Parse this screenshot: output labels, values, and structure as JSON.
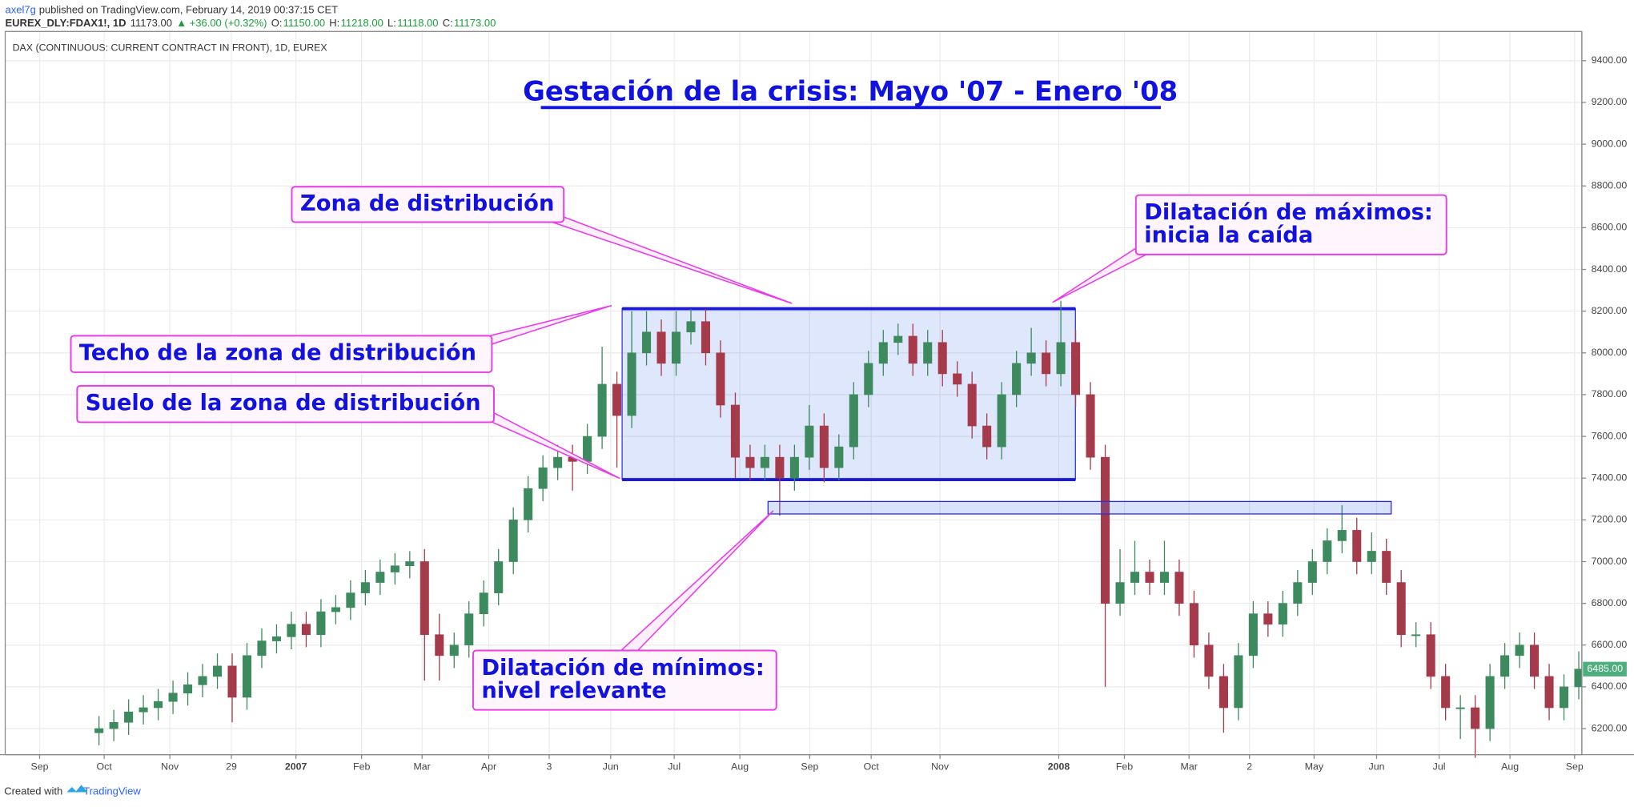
{
  "header": {
    "publisher": "axel7g",
    "published": "published on TradingView.com, February 14, 2019 00:37:15 CET",
    "quote": [
      "EUREX_DLY:FDAX1!, 1D",
      "11173.00",
      "▲ +36.00 (+0.32%)",
      "O:",
      "11150.00",
      "H:",
      "11218.00",
      "L:",
      "11118.00",
      "C:",
      "11173.00"
    ],
    "symbol_description": "DAX (CONTINUOUS: CURRENT CONTRACT IN FRONT), 1D, EUREX"
  },
  "chart_data": {
    "type": "candlestick",
    "title": "Gestación de la crisis: Mayo '07 - Enero '08",
    "categories": [
      "Sep",
      "Oct",
      "Nov",
      "29",
      "2007",
      "Feb",
      "Mar",
      "Apr",
      "3",
      "Jun",
      "Jul",
      "Aug",
      "Sep",
      "Oct",
      "Nov",
      "2008",
      "Feb",
      "Mar",
      "2",
      "May",
      "Jun",
      "Jul",
      "Aug",
      "Sep"
    ],
    "up_color": "#3c8a5e",
    "down_color": "#a53a4b",
    "open": [
      6180,
      6200,
      6230,
      6280,
      6300,
      6330,
      6370,
      6410,
      6450,
      6500,
      6350,
      6550,
      6620,
      6640,
      6700,
      6650,
      6760,
      6780,
      6850,
      6900,
      6950,
      6980,
      7000,
      6650,
      6550,
      6600,
      6750,
      6850,
      7000,
      7200,
      7350,
      7450,
      7500,
      7480,
      7600,
      7850,
      7700,
      8000,
      8100,
      7950,
      8100,
      8150,
      8000,
      7750,
      7500,
      7450,
      7500,
      7400,
      7500,
      7650,
      7450,
      7550,
      7800,
      7950,
      8050,
      8080,
      7950,
      8050,
      7900,
      7850,
      7650,
      7550,
      7800,
      7950,
      8000,
      7900,
      8050,
      7800,
      7500,
      6800,
      6900,
      6950,
      6900,
      6950,
      6800,
      6600,
      6450,
      6300,
      6550,
      6750,
      6700,
      6800,
      6900,
      7000,
      7100,
      7150,
      7000,
      7050,
      6900,
      6650,
      6650,
      6450,
      6300,
      6300,
      6200,
      6450,
      6550,
      6600,
      6450,
      6300,
      6400
    ],
    "high": [
      6260,
      6290,
      6340,
      6360,
      6390,
      6430,
      6470,
      6510,
      6560,
      6560,
      6610,
      6680,
      6700,
      6760,
      6760,
      6820,
      6840,
      6910,
      6960,
      7010,
      7040,
      7050,
      7060,
      6750,
      6660,
      6810,
      6910,
      7060,
      7260,
      7410,
      7510,
      7560,
      7560,
      7660,
      8030,
      7910,
      8200,
      8200,
      8160,
      8200,
      8210,
      8210,
      8060,
      7810,
      7560,
      7560,
      7560,
      7560,
      7750,
      7710,
      7610,
      7860,
      8010,
      8110,
      8140,
      8140,
      8110,
      8110,
      7960,
      7910,
      7710,
      7860,
      8010,
      8120,
      8060,
      8250,
      8110,
      7860,
      7560,
      7060,
      7100,
      7010,
      7100,
      7010,
      6860,
      6660,
      6510,
      6610,
      6810,
      6810,
      6860,
      6960,
      7060,
      7160,
      7270,
      7210,
      7140,
      7110,
      6960,
      6710,
      6710,
      6510,
      6360,
      6360,
      6510,
      6610,
      6660,
      6660,
      6510,
      6460,
      6570
    ],
    "low": [
      6120,
      6140,
      6170,
      6220,
      6240,
      6270,
      6310,
      6350,
      6390,
      6230,
      6290,
      6490,
      6560,
      6580,
      6590,
      6590,
      6700,
      6720,
      6790,
      6840,
      6890,
      6920,
      6430,
      6430,
      6490,
      6540,
      6690,
      6790,
      6940,
      7140,
      7290,
      7390,
      7340,
      7420,
      7540,
      7450,
      7640,
      7940,
      7890,
      7890,
      8040,
      7940,
      7690,
      7400,
      7390,
      7390,
      7220,
      7340,
      7440,
      7380,
      7390,
      7490,
      7740,
      7890,
      7990,
      7890,
      7890,
      7840,
      7790,
      7590,
      7490,
      7490,
      7740,
      7890,
      7840,
      7840,
      7740,
      7440,
      6400,
      6740,
      6840,
      6840,
      6840,
      6740,
      6540,
      6390,
      6180,
      6240,
      6490,
      6640,
      6640,
      6740,
      6840,
      6940,
      7040,
      6940,
      6940,
      6840,
      6590,
      6590,
      6390,
      6240,
      6150,
      6060,
      6140,
      6390,
      6490,
      6390,
      6240,
      6240,
      6340
    ],
    "close": [
      6200,
      6230,
      6280,
      6300,
      6330,
      6370,
      6410,
      6450,
      6500,
      6350,
      6550,
      6620,
      6640,
      6700,
      6650,
      6760,
      6780,
      6850,
      6900,
      6950,
      6980,
      7000,
      6650,
      6550,
      6600,
      6750,
      6850,
      7000,
      7200,
      7350,
      7450,
      7500,
      7480,
      7600,
      7850,
      7700,
      8000,
      8100,
      7950,
      8100,
      8150,
      8000,
      7750,
      7500,
      7450,
      7500,
      7400,
      7500,
      7650,
      7450,
      7550,
      7800,
      7950,
      8050,
      8080,
      7950,
      8050,
      7900,
      7850,
      7650,
      7550,
      7800,
      7950,
      8000,
      7900,
      8050,
      7800,
      7500,
      6800,
      6900,
      6950,
      6900,
      6950,
      6800,
      6600,
      6450,
      6300,
      6550,
      6750,
      6700,
      6800,
      6900,
      7000,
      7100,
      7150,
      7000,
      7050,
      6900,
      6650,
      6650,
      6450,
      6300,
      6300,
      6200,
      6450,
      6550,
      6600,
      6450,
      6300,
      6400,
      6485
    ],
    "last_price": {
      "value": 6485,
      "label": "6485.00"
    },
    "ylim": [
      6075,
      9540
    ],
    "yticks": [
      {
        "value": 6200,
        "label": "6200.00"
      },
      {
        "value": 6400,
        "label": "6400.00"
      },
      {
        "value": 6600,
        "label": "6600.00"
      },
      {
        "value": 6800,
        "label": "6800.00"
      },
      {
        "value": 7000,
        "label": "7000.00"
      },
      {
        "value": 7200,
        "label": "7200.00"
      },
      {
        "value": 7400,
        "label": "7400.00"
      },
      {
        "value": 7600,
        "label": "7600.00"
      },
      {
        "value": 7800,
        "label": "7800.00"
      },
      {
        "value": 8000,
        "label": "8000.00"
      },
      {
        "value": 8200,
        "label": "8200.00"
      },
      {
        "value": 8400,
        "label": "8400.00"
      },
      {
        "value": 8600,
        "label": "8600.00"
      },
      {
        "value": 8800,
        "label": "8800.00"
      },
      {
        "value": 9000,
        "label": "9000.00"
      },
      {
        "value": 9200,
        "label": "9200.00"
      },
      {
        "value": 9400,
        "label": "9400.00"
      }
    ],
    "grid": true,
    "annotations": [
      {
        "lines": [
          "Zona de distribución"
        ]
      },
      {
        "lines": [
          "Dilatación de máximos:",
          "inicia la caída"
        ]
      },
      {
        "lines": [
          "Techo de la zona de distribución"
        ]
      },
      {
        "lines": [
          "Suelo de la zona de distribución"
        ]
      },
      {
        "lines": [
          "Dilatación de mínimos:",
          "nivel relevante"
        ]
      }
    ]
  },
  "footer": {
    "created": "Created with",
    "brand": "TradingView"
  }
}
